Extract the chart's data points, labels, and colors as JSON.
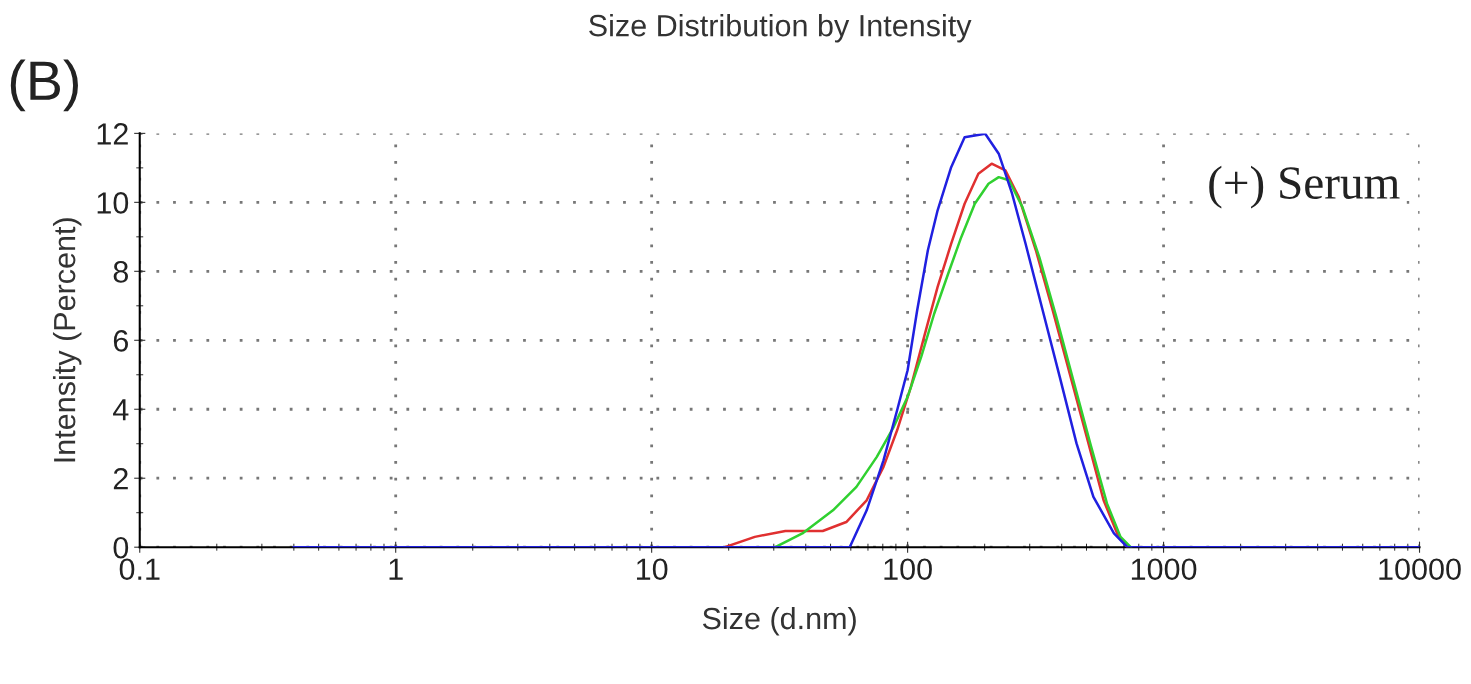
{
  "chart_data": {
    "type": "line",
    "title": "Size Distribution by Intensity",
    "xlabel": "Size (d.nm)",
    "ylabel": "Intensity (Percent)",
    "annotations": [
      "(B)",
      "(+) Serum"
    ],
    "log": "x",
    "xlim": [
      0.1,
      10000
    ],
    "xticks": [
      0.1,
      1,
      10,
      100,
      1000,
      10000
    ],
    "ylim": [
      0,
      12
    ],
    "yticks": [
      0,
      2,
      4,
      6,
      8,
      10,
      12
    ],
    "grid": true,
    "line_style": "solid",
    "series": [
      {
        "color": "#e03030",
        "x": [
          19.3,
          25.3,
          33.3,
          46.6,
          57.6,
          69.2,
          80.5,
          91,
          103,
          116,
          131,
          148,
          167,
          189,
          213,
          241,
          272,
          317,
          369,
          430,
          501,
          583,
          659,
          722
        ],
        "values": [
          0,
          0.3,
          0.47,
          0.47,
          0.73,
          1.36,
          2.33,
          3.39,
          4.65,
          6.1,
          7.55,
          8.8,
          9.96,
          10.83,
          11.12,
          10.93,
          10.15,
          8.61,
          6.87,
          5.03,
          3.2,
          1.36,
          0.4,
          0
        ]
      },
      {
        "color": "#30d030",
        "x": [
          30.4,
          38.8,
          51.1,
          63.1,
          75.8,
          88.3,
          100,
          113,
          127,
          144,
          162,
          183,
          207,
          227,
          249,
          281,
          327,
          381,
          444,
          517,
          601,
          679,
          745
        ],
        "values": [
          0,
          0.4,
          1.07,
          1.75,
          2.62,
          3.49,
          4.36,
          5.52,
          6.77,
          7.93,
          8.99,
          9.96,
          10.54,
          10.73,
          10.64,
          9.86,
          8.41,
          6.68,
          4.84,
          3.01,
          1.27,
          0.3,
          0
        ]
      },
      {
        "color": "#2020e0",
        "x": [
          0.4,
          59.4,
          69.2,
          80.5,
          91,
          100,
          109,
          120,
          131,
          148,
          167,
          201,
          227,
          256,
          289,
          337,
          393,
          457,
          532,
          640,
          722,
          10000
        ],
        "values": [
          0,
          0,
          1.07,
          2.52,
          3.97,
          5.13,
          6.87,
          8.61,
          9.77,
          11.02,
          11.89,
          11.99,
          11.41,
          10.25,
          8.8,
          6.87,
          4.94,
          3.01,
          1.46,
          0.4,
          0,
          0
        ]
      }
    ]
  }
}
